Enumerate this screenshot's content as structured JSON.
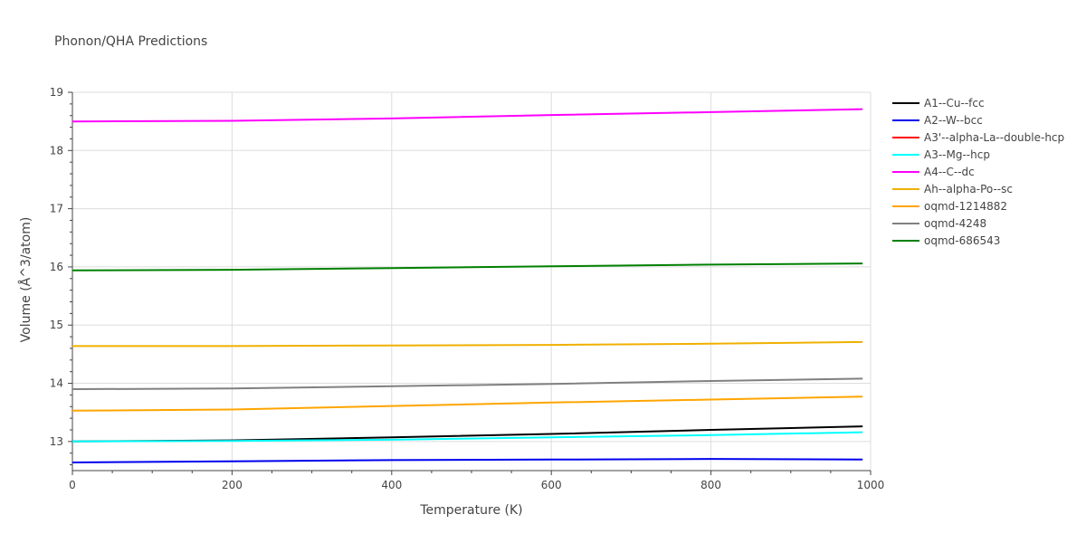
{
  "chart_data": {
    "type": "line",
    "title": "Phonon/QHA Predictions",
    "xlabel": "Temperature (K)",
    "ylabel": "Volume (Å^3/atom)",
    "xlim": [
      0,
      1000
    ],
    "ylim": [
      12.5,
      19
    ],
    "x_ticks": [
      0,
      200,
      400,
      600,
      800,
      1000
    ],
    "y_ticks": [
      13,
      14,
      15,
      16,
      17,
      18,
      19
    ],
    "grid": true,
    "legend": "right",
    "series": [
      {
        "name": "A1--Cu--fcc",
        "color": "#000000",
        "x": [
          0,
          200,
          400,
          600,
          800,
          990
        ],
        "y": [
          13.0,
          13.02,
          13.07,
          13.13,
          13.2,
          13.26
        ]
      },
      {
        "name": "A2--W--bcc",
        "color": "#0000ee",
        "x": [
          0,
          200,
          400,
          600,
          800,
          990
        ],
        "y": [
          12.64,
          12.66,
          12.68,
          12.69,
          12.7,
          12.69
        ]
      },
      {
        "name": "A3'--alpha-La--double-hcp",
        "color": "#ff0000",
        "x": [],
        "y": []
      },
      {
        "name": "A3--Mg--hcp",
        "color": "#00ffff",
        "x": [
          0,
          200,
          400,
          600,
          800,
          990
        ],
        "y": [
          13.0,
          13.01,
          13.03,
          13.07,
          13.11,
          13.16
        ]
      },
      {
        "name": "A4--C--dc",
        "color": "#ff00ff",
        "x": [
          0,
          200,
          400,
          600,
          800,
          990
        ],
        "y": [
          18.5,
          18.51,
          18.55,
          18.61,
          18.66,
          18.71
        ]
      },
      {
        "name": "Ah--alpha-Po--sc",
        "color": "#f0b000",
        "x": [
          0,
          200,
          400,
          600,
          800,
          990
        ],
        "y": [
          14.64,
          14.64,
          14.65,
          14.66,
          14.68,
          14.71
        ]
      },
      {
        "name": "oqmd-1214882",
        "color": "#ffa500",
        "x": [
          0,
          200,
          400,
          600,
          800,
          990
        ],
        "y": [
          13.53,
          13.55,
          13.61,
          13.67,
          13.72,
          13.77
        ]
      },
      {
        "name": "oqmd-4248",
        "color": "#808080",
        "x": [
          0,
          200,
          400,
          600,
          800,
          990
        ],
        "y": [
          13.9,
          13.91,
          13.95,
          13.99,
          14.04,
          14.08
        ]
      },
      {
        "name": "oqmd-686543",
        "color": "#008000",
        "x": [
          0,
          200,
          400,
          600,
          800,
          990
        ],
        "y": [
          15.94,
          15.95,
          15.98,
          16.01,
          16.04,
          16.06
        ]
      }
    ]
  }
}
